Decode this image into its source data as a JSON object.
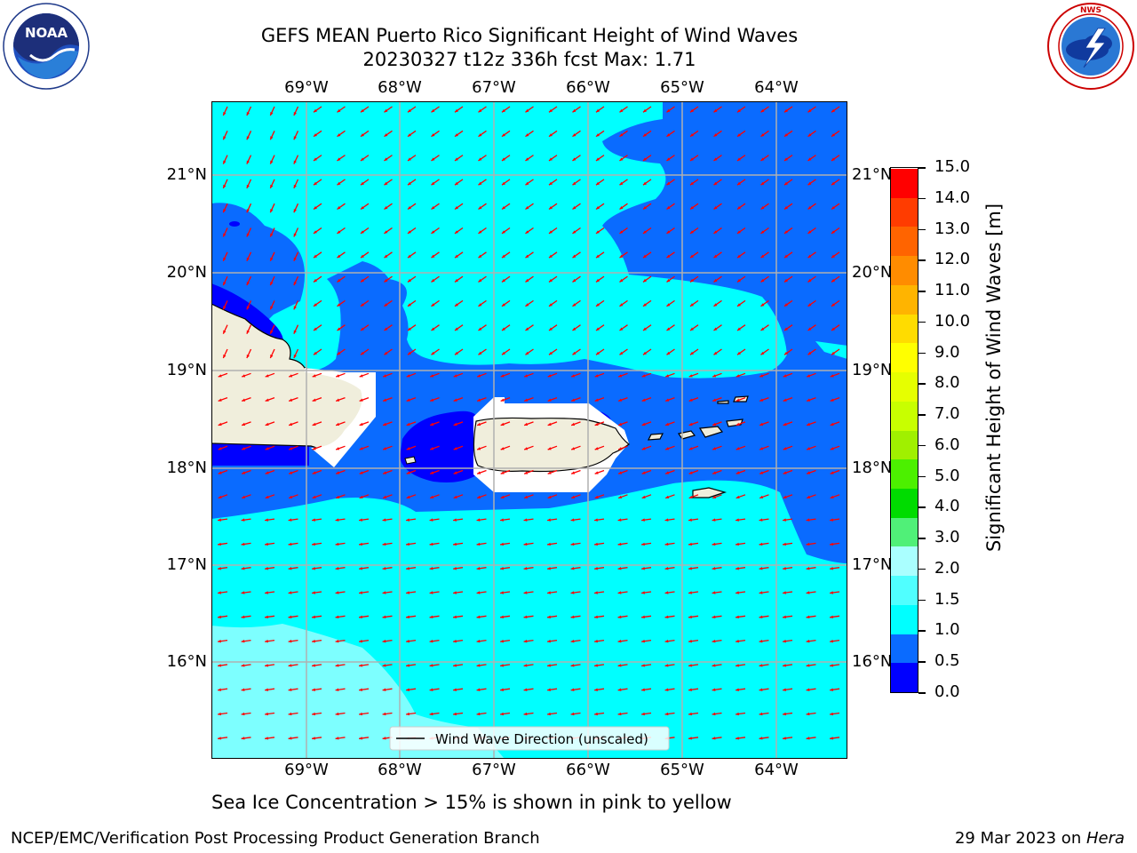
{
  "header": {
    "title_line1": "GEFS MEAN Puerto Rico Significant Height of Wind Waves",
    "title_line2": "20230327 t12z 336h fcst   Max: 1.71"
  },
  "logos": {
    "left": {
      "name": "noaa-logo",
      "text": "NOAA",
      "ring_text": "NATIONAL OCEANIC AND ATMOSPHERIC ADMINISTRATION · U.S. DEPARTMENT OF COMMERCE"
    },
    "right": {
      "name": "nws-logo",
      "ring_text": "NATIONAL WEATHER SERVICE"
    }
  },
  "map": {
    "lon_labels": [
      "69°W",
      "68°W",
      "67°W",
      "66°W",
      "65°W",
      "64°W"
    ],
    "lat_labels": [
      "21°N",
      "20°N",
      "19°N",
      "18°N",
      "17°N",
      "16°N"
    ],
    "legend_label": "Wind Wave Direction (unscaled)",
    "colors": {
      "ocean_0_05": "#0000ff",
      "ocean_05_10": "#0a6bff",
      "ocean_10_15": "#00ffff",
      "ocean_15_20": "#7dffff",
      "land": "#f0eedc",
      "arrow": "#ff0000",
      "grid": "#b0b0b0"
    }
  },
  "colorbar": {
    "title": "Significant Height of Wind Waves [m]",
    "levels": [
      "15.0",
      "14.0",
      "13.0",
      "12.0",
      "11.0",
      "10.0",
      "9.0",
      "8.0",
      "7.0",
      "6.0",
      "5.0",
      "4.0",
      "3.0",
      "2.0",
      "1.5",
      "1.0",
      "0.5",
      "0.0"
    ],
    "colors": [
      "#0000ff",
      "#0a6bff",
      "#00ffff",
      "#50ffff",
      "#aaffff",
      "#50f078",
      "#00dc00",
      "#4cf000",
      "#a0f000",
      "#c8ff00",
      "#e6ff00",
      "#ffff00",
      "#ffdc00",
      "#ffb400",
      "#ff8c00",
      "#ff6400",
      "#ff3c00",
      "#ff0000"
    ]
  },
  "footnote": "Sea Ice Concentration > 15% is shown in pink to yellow",
  "footer": {
    "left": "NCEP/EMC/Verification Post Processing Product Generation Branch",
    "right_prefix": "29 Mar 2023 on ",
    "right_host": "Hera"
  }
}
